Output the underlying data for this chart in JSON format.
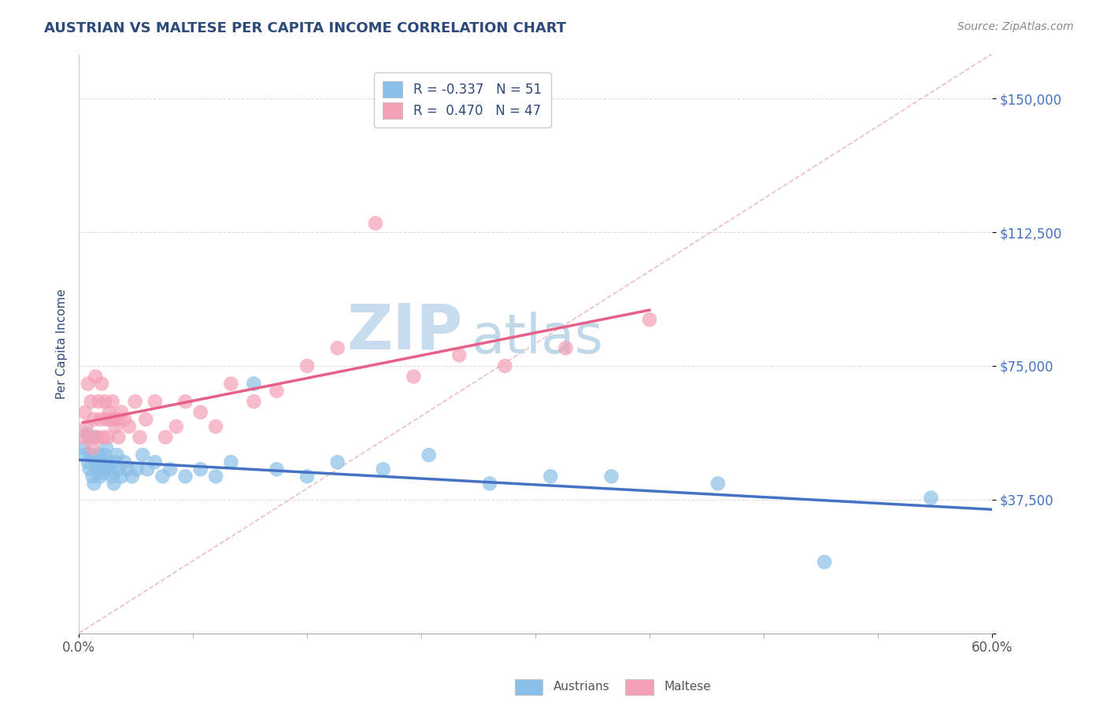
{
  "title": "AUSTRIAN VS MALTESE PER CAPITA INCOME CORRELATION CHART",
  "source_text": "Source: ZipAtlas.com",
  "ylabel": "Per Capita Income",
  "xlim": [
    0.0,
    0.6
  ],
  "ylim": [
    0,
    162500
  ],
  "yticks": [
    0,
    37500,
    75000,
    112500,
    150000
  ],
  "ytick_labels": [
    "",
    "$37,500",
    "$75,000",
    "$112,500",
    "$150,000"
  ],
  "xtick_left_label": "0.0%",
  "xtick_right_label": "60.0%",
  "legend_r1": "R = -0.337",
  "legend_n1": "N = 51",
  "legend_r2": "R =  0.470",
  "legend_n2": "N = 47",
  "color_austrians": "#8BBFE8",
  "color_maltese": "#F4A0B5",
  "color_austrians_line": "#4472C4",
  "color_maltese_line": "#E8608A",
  "color_ref_line": "#E8A0B0",
  "title_color": "#2E4A7A",
  "source_color": "#888888",
  "axis_label_color": "#2E4A7A",
  "ytick_color": "#4472C4",
  "xtick_color": "#555555",
  "watermark_zip_color": "#C8DCF0",
  "watermark_atlas_color": "#C0D8E8",
  "background_color": "#FFFFFF",
  "grid_color": "#DDDDDD",
  "austrians_x": [
    0.003,
    0.004,
    0.005,
    0.006,
    0.007,
    0.008,
    0.009,
    0.01,
    0.01,
    0.011,
    0.012,
    0.013,
    0.014,
    0.015,
    0.016,
    0.017,
    0.018,
    0.019,
    0.02,
    0.021,
    0.022,
    0.023,
    0.024,
    0.025,
    0.026,
    0.028,
    0.03,
    0.032,
    0.035,
    0.038,
    0.042,
    0.045,
    0.05,
    0.055,
    0.06,
    0.07,
    0.08,
    0.09,
    0.1,
    0.115,
    0.13,
    0.15,
    0.17,
    0.2,
    0.23,
    0.27,
    0.31,
    0.35,
    0.42,
    0.49,
    0.56
  ],
  "austrians_y": [
    52000,
    50000,
    56000,
    48000,
    46000,
    50000,
    44000,
    42000,
    55000,
    48000,
    46000,
    50000,
    44000,
    48000,
    45000,
    50000,
    52000,
    47000,
    48000,
    46000,
    44000,
    42000,
    48000,
    50000,
    46000,
    44000,
    48000,
    46000,
    44000,
    46000,
    50000,
    46000,
    48000,
    44000,
    46000,
    44000,
    46000,
    44000,
    48000,
    70000,
    46000,
    44000,
    48000,
    46000,
    50000,
    42000,
    44000,
    44000,
    42000,
    20000,
    38000
  ],
  "maltese_x": [
    0.003,
    0.004,
    0.005,
    0.006,
    0.007,
    0.008,
    0.009,
    0.01,
    0.011,
    0.012,
    0.013,
    0.014,
    0.015,
    0.016,
    0.017,
    0.018,
    0.019,
    0.02,
    0.021,
    0.022,
    0.023,
    0.024,
    0.025,
    0.026,
    0.028,
    0.03,
    0.033,
    0.037,
    0.04,
    0.044,
    0.05,
    0.057,
    0.064,
    0.07,
    0.08,
    0.09,
    0.1,
    0.115,
    0.13,
    0.15,
    0.17,
    0.195,
    0.22,
    0.25,
    0.28,
    0.32,
    0.375
  ],
  "maltese_y": [
    55000,
    62000,
    58000,
    70000,
    55000,
    65000,
    52000,
    60000,
    72000,
    55000,
    65000,
    60000,
    70000,
    55000,
    65000,
    60000,
    55000,
    62000,
    60000,
    65000,
    60000,
    58000,
    60000,
    55000,
    62000,
    60000,
    58000,
    65000,
    55000,
    60000,
    65000,
    55000,
    58000,
    65000,
    62000,
    58000,
    70000,
    65000,
    68000,
    75000,
    80000,
    115000,
    72000,
    78000,
    75000,
    80000,
    88000
  ]
}
